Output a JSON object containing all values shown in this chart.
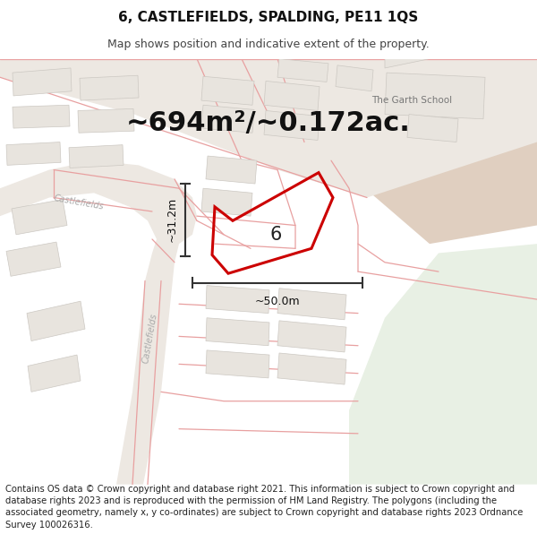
{
  "title": "6, CASTLEFIELDS, SPALDING, PE11 1QS",
  "subtitle": "Map shows position and indicative extent of the property.",
  "area_text": "~694m²/~0.172ac.",
  "width_label": "~50.0m",
  "height_label": "~31.2m",
  "number_label": "6",
  "footer": "Contains OS data © Crown copyright and database right 2021. This information is subject to Crown copyright and database rights 2023 and is reproduced with the permission of HM Land Registry. The polygons (including the associated geometry, namely x, y co-ordinates) are subject to Crown copyright and database rights 2023 Ordnance Survey 100026316.",
  "map_bg": "#f7f4f0",
  "road_line_color": "#e8a0a0",
  "building_fill": "#e8e4de",
  "building_edge": "#ccc8c2",
  "green_fill": "#e8f0e4",
  "brown_fill": "#e0cfc0",
  "property_fill": "#ffffff",
  "property_edge": "#cc0000",
  "dim_line_color": "#333333",
  "text_color": "#111111",
  "garth_text_color": "#777777",
  "castlefields_text_color": "#aaaaaa",
  "title_fontsize": 11,
  "subtitle_fontsize": 9,
  "area_fontsize": 22,
  "dim_label_fontsize": 9,
  "number_fontsize": 15,
  "footer_fontsize": 7.2,
  "garth_fontsize": 7.5,
  "castlefields_fontsize": 7
}
